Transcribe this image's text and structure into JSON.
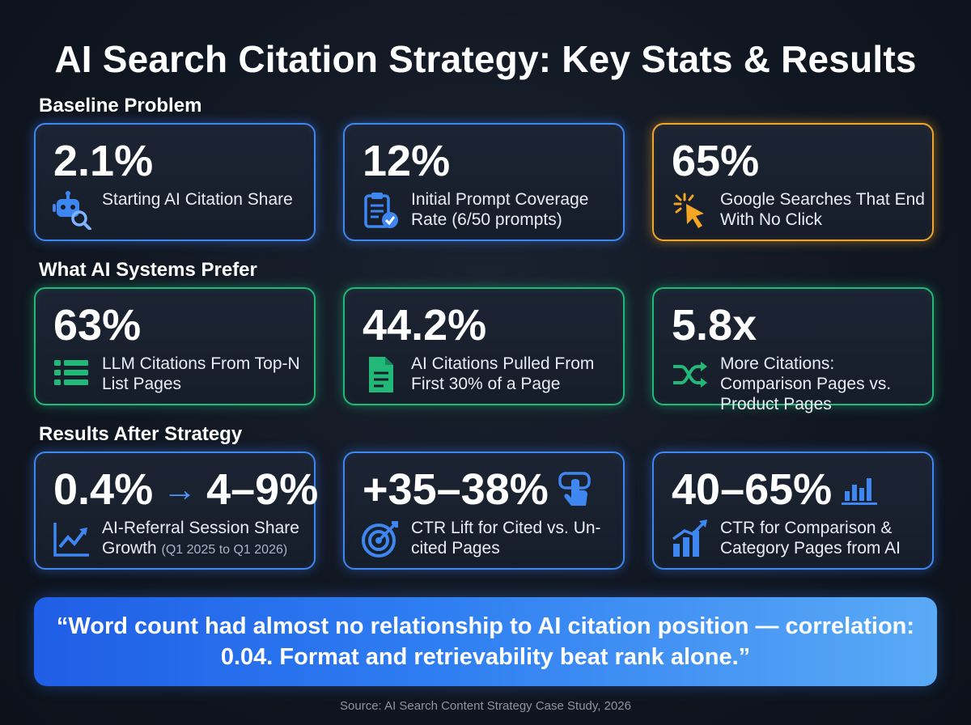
{
  "title": "AI Search Citation Strategy: Key Stats & Results",
  "sections": [
    {
      "title": "Baseline Problem",
      "cards": [
        {
          "stat": "2.1%",
          "label": "Starting AI Citation Share",
          "icon": "robot-search-icon",
          "accent": "#3e86f0"
        },
        {
          "stat": "12%",
          "label": "Initial Prompt Coverage Rate (6/50 prompts)",
          "icon": "clipboard-check-icon",
          "accent": "#3e86f0"
        },
        {
          "stat": "65%",
          "label": "Google Searches That End With No Click",
          "icon": "cursor-click-icon",
          "accent": "#f0a52d"
        }
      ]
    },
    {
      "title": "What AI Systems Prefer",
      "cards": [
        {
          "stat": "63%",
          "label": "LLM Citations From Top-N List Pages",
          "icon": "list-icon",
          "accent": "#22b877"
        },
        {
          "stat": "44.2%",
          "label": "AI Citations Pulled From First 30% of a Page",
          "icon": "document-icon",
          "accent": "#22b877"
        },
        {
          "stat": "5.8x",
          "label": "More Citations: Comparison Pages vs. Product Pages",
          "icon": "shuffle-icon",
          "accent": "#22b877"
        }
      ]
    },
    {
      "title": "Results After Strategy",
      "cards": [
        {
          "stat_from": "0.4%",
          "stat_arrow": "→",
          "stat_to": "4–9%",
          "label": "AI-Referral Session Share Growth",
          "label_small": "(Q1 2025 to Q1 2026)",
          "icon": "trend-up-icon",
          "accent": "#3e86f0"
        },
        {
          "stat": "+35–38%",
          "label": "CTR Lift for Cited vs. Un-cited Pages",
          "icon": "target-icon",
          "stat_icon": "tap-click-icon",
          "accent": "#3e86f0"
        },
        {
          "stat": "40–65%",
          "label": "CTR for Comparison & Category Pages from AI",
          "icon": "bar-growth-icon",
          "stat_icon": "bar-chart-icon",
          "accent": "#3e86f0"
        }
      ]
    }
  ],
  "quote": "“Word count had almost no relationship to AI citation position — correlation: 0.04. Format and retrievability beat rank alone.”",
  "source": "Source: AI Search Content Strategy Case Study, 2026"
}
